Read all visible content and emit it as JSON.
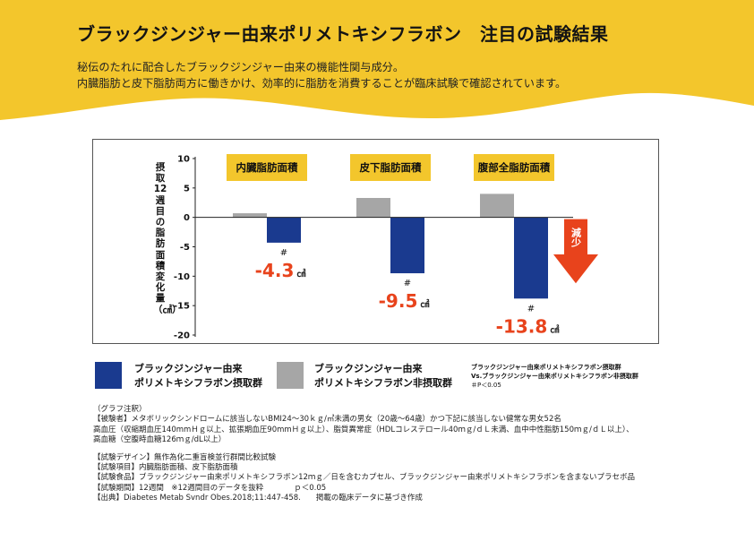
{
  "header": {
    "title": "ブラックジンジャー由来ポリメトキシフラボン　注目の試験結果",
    "subtitle_lines": [
      "秘伝のたれに配合したブラックジンジャー由来の機能性関与成分。",
      "内臓脂肪と皮下脂肪両方に働きかけ、効率的に脂肪を消費することが臨床試験で確認されています。"
    ]
  },
  "colors": {
    "header_bg": "#f3c62c",
    "active": "#1a3a8f",
    "placebo": "#a6a6a6",
    "highlight": "#e8431c",
    "category_bg": "#f3c62c"
  },
  "chart_data": {
    "type": "bar",
    "ylabel": "摂取12週目の脂肪面積変化量（㎠）",
    "ylim": [
      -20,
      10
    ],
    "yticks": [
      10,
      5,
      0,
      -5,
      -10,
      -15,
      -20
    ],
    "ytick_labels": [
      "10",
      "5",
      "0",
      "-5",
      "-10",
      "-15",
      "-20"
    ],
    "categories": [
      "内臓脂肪面積",
      "皮下脂肪面積",
      "腹部全脂肪面積"
    ],
    "series": [
      {
        "name": "ブラックジンジャー由来ポリメトキシフラボン非摂取群",
        "values": [
          0.7,
          3.3,
          4.0
        ]
      },
      {
        "name": "ブラックジンジャー由来ポリメトキシフラボン摂取群",
        "values": [
          -4.3,
          -9.5,
          -13.8
        ]
      }
    ],
    "value_labels": [
      "-4.3",
      "-9.5",
      "-13.8"
    ],
    "unit": "㎠",
    "significance_mark": "#",
    "arrow_label": "減少"
  },
  "legend": {
    "active_line1": "ブラックジンジャー由来",
    "active_line2": "ポリメトキシフラボン摂取群",
    "placebo_line1": "ブラックジンジャー由来",
    "placebo_line2": "ポリメトキシフラボン非摂取群",
    "note_line1": "ブラックジンジャー由来ポリメトキシフラボン摂取群",
    "note_line2": "Vs.ブラックジンジャー由来ポリメトキシフラボン非摂取群",
    "note_line3": "＃P＜0.05"
  },
  "notes": {
    "lines1": [
      "（グラフ注釈）",
      "【被験者】メタボリックシンドロームに該当しないBMI24～30ｋｇ/㎡未満の男女（20歳～64歳）かつ下記に該当しない健常な男女52名",
      "高血圧（収縮期血圧140mmＨｇ以上、拡張期血圧90mmＨｇ以上）、脂質異常症（HDLコレステロール40ｍｇ/ｄＬ未満、血中中性脂肪150ｍｇ/ｄＬ以上）、",
      "高血糖（空腹時血糖126ｍｇ/dL以上）"
    ],
    "lines2": [
      "【試験デザイン】無作為化二重盲検並行群間比較試験",
      "【試験項目】内臓脂肪面積、皮下脂肪面積",
      "【試験食品】ブラックジンジャー由来ポリメトキシフラボン12ｍｇ／日を含むカプセル、ブラックジンジャー由来ポリメトキシフラボンを含まないプラセボ品",
      "【試験期間】12週間　※12週間目のデータを抜粋　　　　ｐ＜0.05",
      "【出典】Diabetes Metab Svndr Obes.2018;11:447-458.　　掲載の臨床データに基づき作成"
    ]
  }
}
